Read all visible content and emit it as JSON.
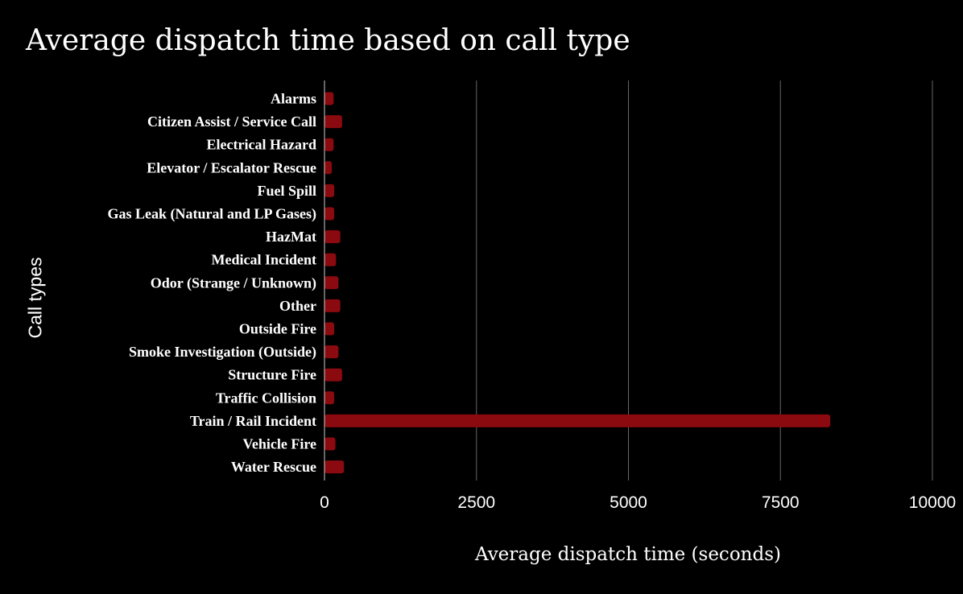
{
  "chart_data": {
    "type": "bar",
    "orientation": "horizontal",
    "title": "Average dispatch time based on call type",
    "xlabel": "Average dispatch time (seconds)",
    "ylabel": "Call types",
    "categories": [
      "Alarms",
      "Citizen Assist / Service Call",
      "Electrical Hazard",
      "Elevator / Escalator Rescue",
      "Fuel Spill",
      "Gas Leak (Natural and LP Gases)",
      "HazMat",
      "Medical Incident",
      "Odor (Strange / Unknown)",
      "Other",
      "Outside Fire",
      "Smoke Investigation (Outside)",
      "Structure Fire",
      "Traffic Collision",
      "Train / Rail Incident",
      "Vehicle Fire",
      "Water Rescue"
    ],
    "values": [
      150,
      290,
      150,
      120,
      160,
      160,
      260,
      190,
      230,
      260,
      160,
      230,
      290,
      160,
      8320,
      180,
      320
    ],
    "xlim": [
      0,
      10000
    ],
    "xticks": [
      "0",
      "2500",
      "5000",
      "7500",
      "10000"
    ],
    "xtick_values": [
      0,
      2500,
      5000,
      7500,
      10000
    ],
    "grid": "vertical",
    "bar_color": "#8b0a0f",
    "grid_color": "#666666",
    "background": "#000000"
  }
}
